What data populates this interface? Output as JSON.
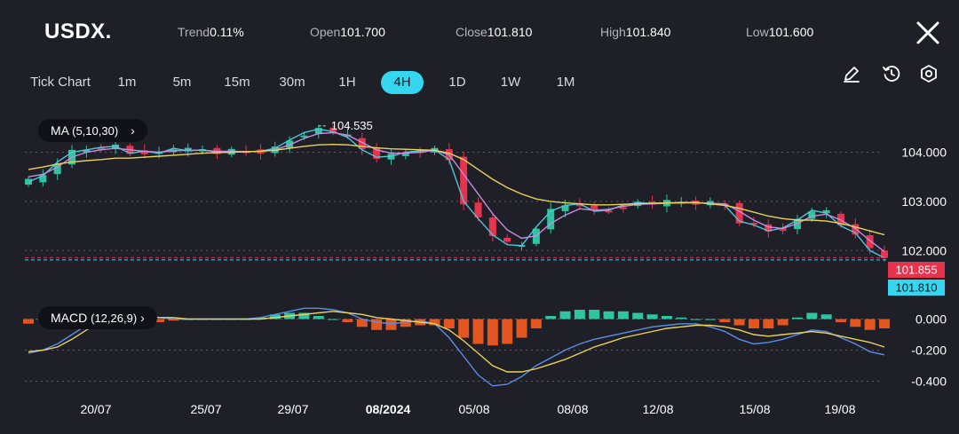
{
  "header": {
    "symbol": "USDX.",
    "stats": [
      {
        "label": "Trend",
        "value": "0.11%"
      },
      {
        "label": "Open",
        "value": "101.700"
      },
      {
        "label": "Close",
        "value": "101.810"
      },
      {
        "label": "High",
        "value": "101.840"
      },
      {
        "label": "Low",
        "value": "101.600"
      }
    ]
  },
  "timeframes": {
    "items": [
      "Tick Chart",
      "1m",
      "5m",
      "15m",
      "30m",
      "1H",
      "4H",
      "1D",
      "1W",
      "1M"
    ],
    "active": "4H"
  },
  "toolbar": {
    "icons": [
      "pencil-icon",
      "clock-icon",
      "settings-icon"
    ]
  },
  "indicators": {
    "ma": {
      "name": "MA",
      "params": "(5,10,30)"
    },
    "macd": {
      "name": "MACD",
      "params": "(12,26,9)"
    }
  },
  "colors": {
    "background": "#1f1f28",
    "up": "#2ec4a0",
    "down": "#e8334d",
    "accent": "#35d6f0",
    "ma5": "#4ec6d6",
    "ma10": "#c58ce0",
    "ma30": "#e9d25a",
    "macd_line": "#5b8de8",
    "signal_line": "#e9d25a",
    "hist_pos": "#2ec4a0",
    "hist_neg": "#e3561f"
  },
  "chart_data": [
    {
      "type": "candlestick",
      "title": "USDX.",
      "x_labels": [
        "20/07",
        "25/07",
        "29/07",
        "08/2024",
        "05/08",
        "08/08",
        "12/08",
        "15/08",
        "19/08"
      ],
      "x_labels_bold": [
        "08/2024"
      ],
      "y_ticks": [
        "104.000",
        "103.000",
        "102.000"
      ],
      "ylim": [
        101.5,
        104.75
      ],
      "grid": true,
      "annotations": [
        {
          "text": "104.535",
          "type": "max"
        }
      ],
      "price_tags": [
        {
          "value": 101.855,
          "label": "101.855",
          "color": "#e8334d"
        },
        {
          "value": 101.81,
          "label": "101.810",
          "color": "#35d6f0"
        }
      ],
      "series": [
        {
          "name": "MA5",
          "values": [
            103.4,
            103.52,
            103.8,
            104.0,
            104.05,
            104.1,
            104.12,
            103.98,
            104.02,
            103.98,
            104.08,
            104.03,
            104.05,
            104.0,
            104.02,
            104.01,
            104.02,
            104.08,
            104.25,
            104.4,
            104.47,
            104.42,
            104.3,
            104.05,
            103.9,
            103.92,
            104.0,
            104.03,
            104.05,
            103.85,
            103.0,
            102.65,
            102.32,
            102.12,
            102.1,
            102.48,
            102.8,
            102.92,
            102.95,
            102.8,
            102.82,
            102.93,
            102.97,
            102.96,
            102.97,
            102.98,
            102.97,
            102.96,
            102.92,
            102.6,
            102.52,
            102.4,
            102.46,
            102.62,
            102.82,
            102.76,
            102.5,
            102.36,
            102.0,
            101.85
          ]
        },
        {
          "name": "MA10",
          "values": [
            103.5,
            103.55,
            103.7,
            103.9,
            104.0,
            104.05,
            104.08,
            104.05,
            104.02,
            104.0,
            104.03,
            104.04,
            104.04,
            104.02,
            104.02,
            104.01,
            104.02,
            104.05,
            104.15,
            104.28,
            104.38,
            104.4,
            104.35,
            104.2,
            104.05,
            103.98,
            103.98,
            104.0,
            104.04,
            103.95,
            103.55,
            103.15,
            102.75,
            102.42,
            102.25,
            102.3,
            102.55,
            102.72,
            102.85,
            102.82,
            102.84,
            102.9,
            102.94,
            102.95,
            102.96,
            102.97,
            102.97,
            102.96,
            102.95,
            102.8,
            102.62,
            102.48,
            102.45,
            102.55,
            102.7,
            102.74,
            102.62,
            102.45,
            102.2,
            101.98
          ]
        },
        {
          "name": "MA30",
          "values": [
            103.65,
            103.7,
            103.76,
            103.8,
            103.83,
            103.85,
            103.88,
            103.88,
            103.9,
            103.92,
            103.94,
            103.96,
            103.98,
            103.99,
            104.0,
            104.01,
            104.02,
            104.04,
            104.08,
            104.12,
            104.15,
            104.16,
            104.15,
            104.12,
            104.09,
            104.07,
            104.06,
            104.05,
            104.04,
            103.98,
            103.85,
            103.65,
            103.45,
            103.28,
            103.15,
            103.05,
            103.0,
            102.97,
            102.95,
            102.93,
            102.93,
            102.94,
            102.95,
            102.96,
            102.97,
            102.97,
            102.98,
            102.95,
            102.92,
            102.86,
            102.78,
            102.7,
            102.65,
            102.62,
            102.62,
            102.6,
            102.55,
            102.48,
            102.4,
            102.32
          ]
        }
      ]
    },
    {
      "type": "bar+line",
      "title": "MACD",
      "y_ticks": [
        "0.000",
        "-0.200",
        "-0.400"
      ],
      "ylim": [
        -0.46,
        0.14
      ],
      "grid": true,
      "histogram": [
        -0.03,
        0.0,
        0.02,
        0.03,
        0.02,
        0.01,
        0.0,
        0.0,
        -0.01,
        -0.02,
        -0.01,
        0.0,
        0.0,
        0.0,
        0.0,
        0.0,
        0.01,
        0.03,
        0.04,
        0.04,
        0.02,
        0.0,
        -0.02,
        -0.05,
        -0.07,
        -0.07,
        -0.05,
        -0.04,
        -0.04,
        -0.06,
        -0.12,
        -0.16,
        -0.17,
        -0.16,
        -0.12,
        -0.06,
        0.02,
        0.05,
        0.06,
        0.06,
        0.05,
        0.05,
        0.04,
        0.03,
        0.02,
        0.01,
        0.0,
        0.0,
        -0.02,
        -0.04,
        -0.06,
        -0.06,
        -0.04,
        0.01,
        0.04,
        0.03,
        -0.02,
        -0.05,
        -0.07,
        -0.06
      ],
      "series": [
        {
          "name": "MACD",
          "values": [
            -0.22,
            -0.2,
            -0.16,
            -0.1,
            -0.04,
            0.02,
            0.04,
            0.03,
            0.02,
            0.01,
            0.0,
            0.0,
            0.0,
            0.0,
            0.0,
            0.0,
            0.01,
            0.03,
            0.05,
            0.07,
            0.07,
            0.06,
            0.04,
            0.0,
            -0.02,
            -0.03,
            -0.02,
            -0.01,
            -0.03,
            -0.12,
            -0.24,
            -0.36,
            -0.43,
            -0.42,
            -0.37,
            -0.3,
            -0.25,
            -0.2,
            -0.16,
            -0.13,
            -0.11,
            -0.09,
            -0.07,
            -0.05,
            -0.04,
            -0.03,
            -0.03,
            -0.05,
            -0.08,
            -0.13,
            -0.16,
            -0.15,
            -0.13,
            -0.1,
            -0.07,
            -0.08,
            -0.12,
            -0.16,
            -0.21,
            -0.23
          ]
        },
        {
          "name": "Signal",
          "values": [
            -0.21,
            -0.2,
            -0.18,
            -0.13,
            -0.07,
            -0.02,
            0.01,
            0.02,
            0.02,
            0.01,
            0.01,
            0.0,
            0.0,
            0.0,
            0.0,
            0.0,
            0.0,
            0.01,
            0.02,
            0.03,
            0.04,
            0.05,
            0.04,
            0.03,
            0.01,
            0.0,
            -0.01,
            -0.02,
            -0.03,
            -0.07,
            -0.14,
            -0.22,
            -0.3,
            -0.34,
            -0.34,
            -0.32,
            -0.29,
            -0.26,
            -0.22,
            -0.18,
            -0.15,
            -0.12,
            -0.1,
            -0.08,
            -0.06,
            -0.05,
            -0.04,
            -0.04,
            -0.05,
            -0.07,
            -0.1,
            -0.11,
            -0.1,
            -0.09,
            -0.08,
            -0.09,
            -0.11,
            -0.13,
            -0.15,
            -0.18
          ]
        }
      ]
    }
  ]
}
